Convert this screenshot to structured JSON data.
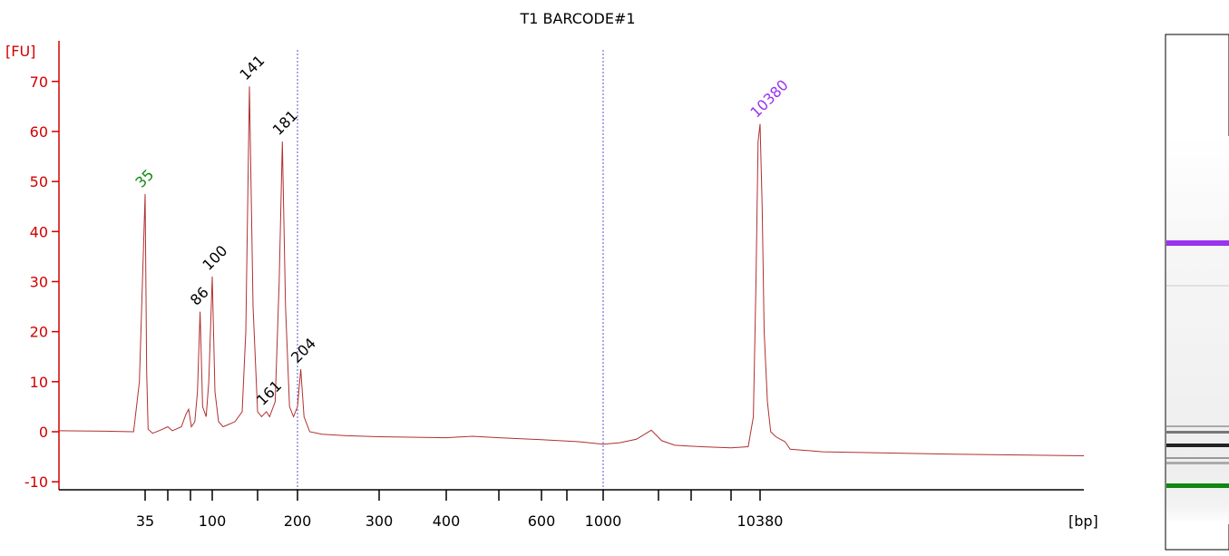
{
  "chart_data": {
    "type": "line",
    "title": "T1 BARCODE#1",
    "y_label": "[FU]",
    "x_label": "[bp]",
    "color": "#b03030",
    "axis_color": "#d00000",
    "xlim": [
      20,
      60000
    ],
    "ylim": [
      -11.6,
      76.3
    ],
    "yticks": [
      -10,
      0,
      10,
      20,
      30,
      40,
      50,
      60,
      70
    ],
    "xticks": [
      35,
      100,
      200,
      300,
      400,
      600,
      1000,
      10380
    ],
    "xminor_ticks": [
      50,
      75,
      150,
      500,
      700,
      2000,
      3000,
      7000
    ],
    "x": [
      20,
      28,
      33,
      34,
      35,
      36,
      37,
      40,
      45,
      50,
      55,
      65,
      70,
      73,
      76,
      80,
      83,
      86,
      89,
      93,
      96,
      100,
      103,
      107,
      112,
      125,
      133,
      137,
      141,
      145,
      150,
      155,
      158,
      161,
      165,
      172,
      177,
      181,
      185,
      190,
      195,
      200,
      204,
      208,
      215,
      230,
      260,
      300,
      400,
      450,
      500,
      600,
      800,
      1000,
      1300,
      1600,
      1870,
      2100,
      2500,
      4000,
      7000,
      9000,
      9600,
      9900,
      10150,
      10380,
      10700,
      11000,
      11500,
      12000,
      12800,
      13500,
      14200,
      15000,
      20000,
      40000,
      60000
    ],
    "values": [
      0.2,
      0.1,
      0,
      10,
      47.5,
      12,
      0.5,
      -0.3,
      0.3,
      1,
      0.2,
      1,
      3.5,
      4.5,
      1,
      2,
      8,
      24,
      5,
      3,
      10,
      31,
      8,
      2,
      1,
      2,
      4,
      20,
      69,
      25,
      4,
      3,
      3.5,
      4,
      3,
      6,
      30,
      58,
      25,
      5,
      3,
      5,
      12.5,
      3,
      0,
      -0.5,
      -0.8,
      -1,
      -1.2,
      -0.9,
      -1.2,
      -1.6,
      -2,
      -2.5,
      -2.2,
      -1.5,
      0.3,
      -1.8,
      -2.7,
      -3,
      -3.2,
      -3,
      3,
      30,
      58,
      61.5,
      45,
      20,
      6,
      0,
      -1,
      -1.5,
      -2,
      -3.5,
      -4,
      -4.5,
      -4.8
    ],
    "peaks": {
      "x": [
        35,
        86,
        100,
        141,
        161,
        181,
        204,
        10380
      ],
      "height": [
        47.5,
        24,
        31,
        69,
        4,
        58,
        12.5,
        61.5
      ],
      "color": [
        "#118811",
        "#000000",
        "#000000",
        "#000000",
        "#000000",
        "#000000",
        "#000000",
        "#9933ee"
      ]
    }
  }
}
